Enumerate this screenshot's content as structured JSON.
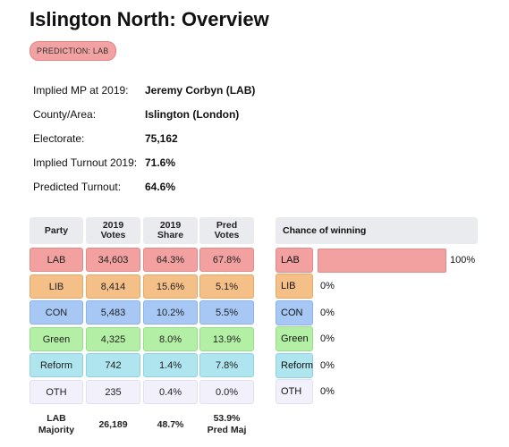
{
  "page_title": "Islington North: Overview",
  "prediction_badge": "PREDICTION: LAB",
  "info": [
    {
      "label": "Implied MP at 2019:",
      "value": "Jeremy Corbyn  (LAB)"
    },
    {
      "label": "County/Area:",
      "value": "Islington (London)"
    },
    {
      "label": "Electorate:",
      "value": "75,162"
    },
    {
      "label": "Implied Turnout 2019:",
      "value": "71.6%"
    },
    {
      "label": "Predicted Turnout:",
      "value": "64.6%"
    }
  ],
  "table": {
    "headers": [
      "Party",
      "2019 Votes",
      "2019 Share",
      "Pred Votes"
    ],
    "rows": [
      {
        "party": "LAB",
        "votes_2019": "34,603",
        "share_2019": "64.3%",
        "pred_votes": "67.8%",
        "color": "#f2a0a0",
        "border": "#e08a8a"
      },
      {
        "party": "LIB",
        "votes_2019": "8,414",
        "share_2019": "15.6%",
        "pred_votes": "5.1%",
        "color": "#f5c088",
        "border": "#e3a86c"
      },
      {
        "party": "CON",
        "votes_2019": "5,483",
        "share_2019": "10.2%",
        "pred_votes": "5.5%",
        "color": "#a7c8f5",
        "border": "#8cb2e6"
      },
      {
        "party": "Green",
        "votes_2019": "4,325",
        "share_2019": "8.0%",
        "pred_votes": "13.9%",
        "color": "#b3f0a6",
        "border": "#98dd8a"
      },
      {
        "party": "Reform",
        "votes_2019": "742",
        "share_2019": "1.4%",
        "pred_votes": "7.8%",
        "color": "#aee5ef",
        "border": "#92d2de"
      },
      {
        "party": "OTH",
        "votes_2019": "235",
        "share_2019": "0.4%",
        "pred_votes": "0.0%",
        "color": "#f1f0fb",
        "border": "#e2e1f0"
      }
    ],
    "footer": {
      "party": "LAB\nMajority",
      "votes_2019": "26,189",
      "share_2019": "48.7%",
      "pred_votes": "53.9%\nPred Maj"
    }
  },
  "chance": {
    "header": "Chance of winning",
    "rows": [
      {
        "party": "LAB",
        "pct_label": "100%",
        "value": 100
      },
      {
        "party": "LIB",
        "pct_label": "0%",
        "value": 0
      },
      {
        "party": "CON",
        "pct_label": "0%",
        "value": 0
      },
      {
        "party": "Green",
        "pct_label": "0%",
        "value": 0
      },
      {
        "party": "Reform",
        "pct_label": "0%",
        "value": 0
      },
      {
        "party": "OTH",
        "pct_label": "0%",
        "value": 0
      }
    ]
  }
}
